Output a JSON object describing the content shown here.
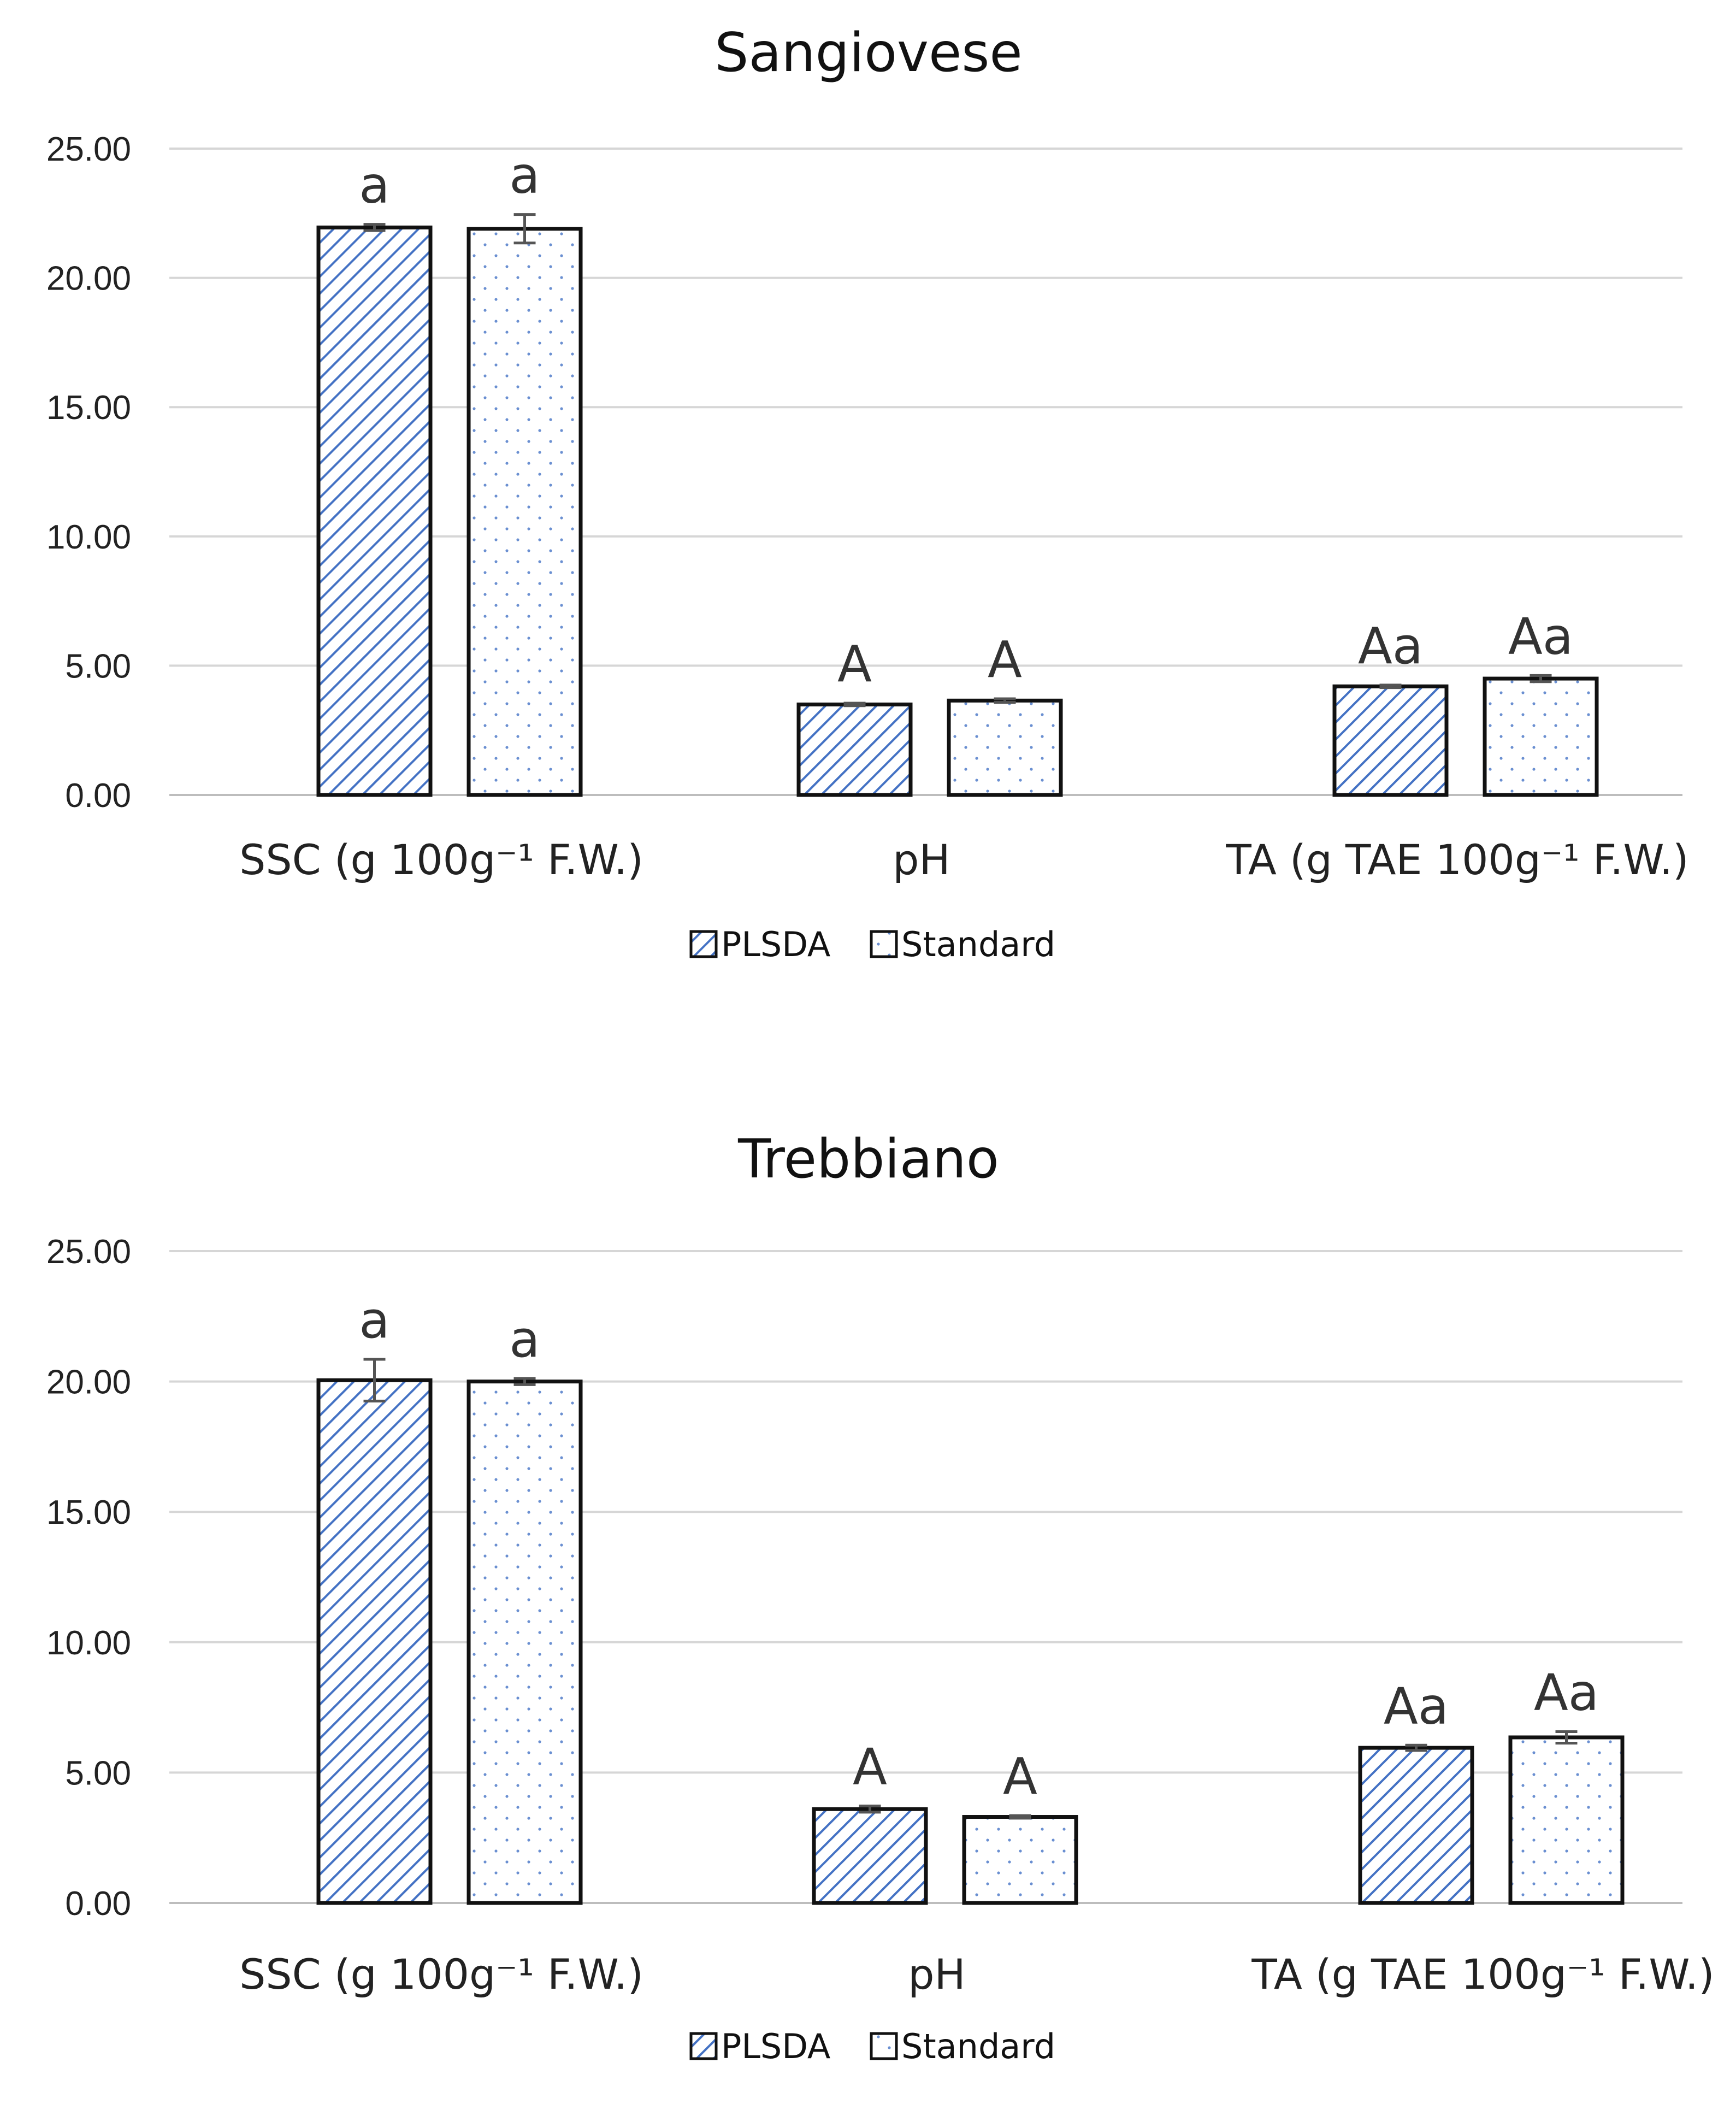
{
  "chart_data": [
    {
      "type": "bar",
      "title": "Sangiovese",
      "categories": [
        "SSC (g 100g⁻¹ F.W.)",
        "pH",
        "TA (g TAE 100g⁻¹ F.W.)"
      ],
      "series": [
        {
          "name": "PLSDA",
          "values": [
            21.95,
            3.5,
            4.2
          ],
          "errors": [
            0.12,
            0.05,
            0.05
          ]
        },
        {
          "name": "Standard",
          "values": [
            21.9,
            3.65,
            4.5
          ],
          "errors": [
            0.55,
            0.07,
            0.12
          ]
        }
      ],
      "significance_labels": [
        [
          "a",
          "a"
        ],
        [
          "A",
          "A"
        ],
        [
          "Aa",
          "Aa"
        ]
      ],
      "ylim": [
        0,
        25
      ],
      "yticks": [
        "0.00",
        "5.00",
        "10.00",
        "15.00",
        "20.00",
        "25.00"
      ],
      "ytick_values": [
        0,
        5,
        10,
        15,
        20,
        25
      ],
      "xlabel": "",
      "ylabel": "",
      "grid": true,
      "legend": [
        "PLSDA",
        "Standard"
      ],
      "legend_position": "bottom"
    },
    {
      "type": "bar",
      "title": "Trebbiano",
      "categories": [
        "SSC (g 100g⁻¹ F.W.)",
        "pH",
        "TA (g TAE 100g⁻¹ F.W.)"
      ],
      "series": [
        {
          "name": "PLSDA",
          "values": [
            20.05,
            3.6,
            5.95
          ],
          "errors": [
            0.8,
            0.12,
            0.1
          ]
        },
        {
          "name": "Standard",
          "values": [
            20.0,
            3.3,
            6.35
          ],
          "errors": [
            0.12,
            0.05,
            0.22
          ]
        }
      ],
      "significance_labels": [
        [
          "a",
          "a"
        ],
        [
          "A",
          "A"
        ],
        [
          "Aa",
          "Aa"
        ]
      ],
      "ylim": [
        0,
        25
      ],
      "yticks": [
        "0.00",
        "5.00",
        "10.00",
        "15.00",
        "20.00",
        "25.00"
      ],
      "ytick_values": [
        0,
        5,
        10,
        15,
        20,
        25
      ],
      "xlabel": "",
      "ylabel": "",
      "grid": true,
      "legend": [
        "PLSDA",
        "Standard"
      ],
      "legend_position": "bottom"
    }
  ]
}
